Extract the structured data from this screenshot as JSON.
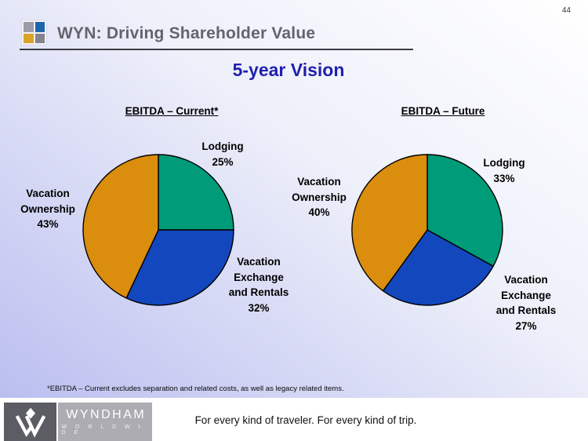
{
  "page_number": "44",
  "header": {
    "title": "WYN: Driving Shareholder Value",
    "logo_colors": {
      "top_left": "#9b9ca8",
      "top_right": "#1c65a9",
      "bottom_left": "#d8a326",
      "bottom_right": "#83848f"
    }
  },
  "subtitle": "5-year Vision",
  "chart_data": [
    {
      "type": "pie",
      "title": "EBITDA – Current*",
      "start_angle": "12 o'clock",
      "direction": "clockwise",
      "slices": [
        {
          "label": "Lodging",
          "value": 25,
          "color": "#009b78",
          "label_text": "Lodging\n25%"
        },
        {
          "label": "Vacation Exchange and Rentals",
          "value": 32,
          "color": "#1347bd",
          "label_text": "Vacation\nExchange\nand Rentals\n32%"
        },
        {
          "label": "Vacation Ownership",
          "value": 43,
          "color": "#db8d0d",
          "label_text": "Vacation\nOwnership\n43%"
        }
      ]
    },
    {
      "type": "pie",
      "title": "EBITDA – Future",
      "start_angle": "12 o'clock",
      "direction": "clockwise",
      "slices": [
        {
          "label": "Lodging",
          "value": 33,
          "color": "#009b78",
          "label_text": "Lodging\n33%"
        },
        {
          "label": "Vacation Exchange and Rentals",
          "value": 27,
          "color": "#1347bd",
          "label_text": "Vacation\nExchange\nand Rentals\n27%"
        },
        {
          "label": "Vacation Ownership",
          "value": 40,
          "color": "#db8d0d",
          "label_text": "Vacation\nOwnership\n40%"
        }
      ]
    }
  ],
  "footnote": "*EBITDA – Current excludes separation and related costs, as well as legacy related items.",
  "footer": {
    "brand_name": "WYNDHAM",
    "brand_subname": "W O R L D W I D E",
    "tagline": "For every kind of traveler. For every kind of trip."
  }
}
